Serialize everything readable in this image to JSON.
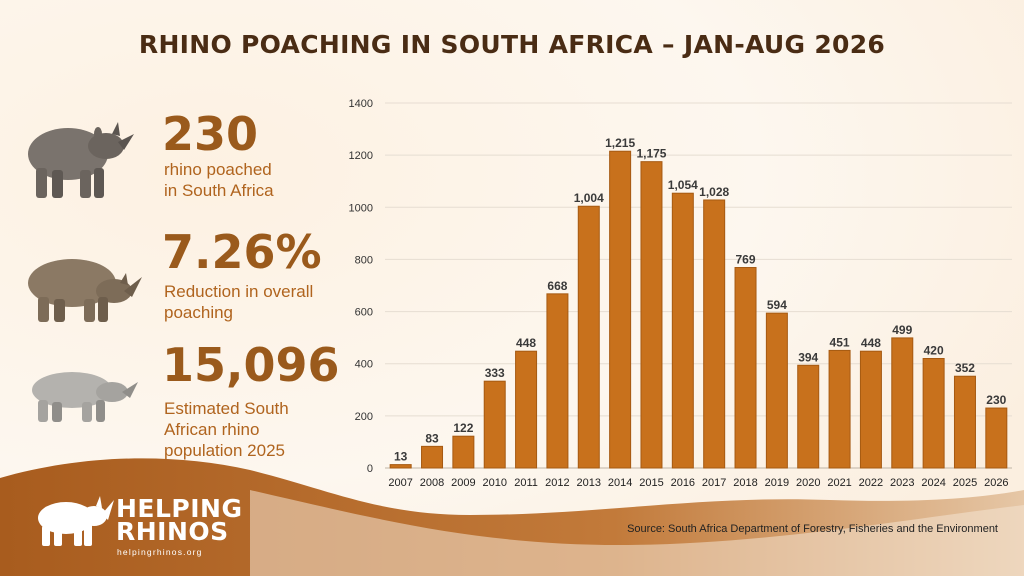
{
  "title": "RHINO POACHING IN SOUTH AFRICA – JAN-AUG 2026",
  "stats": [
    {
      "value": "230",
      "line1": "rhino poached",
      "line2": "in South Africa",
      "line3": ""
    },
    {
      "value": "7.26%",
      "line1": "Reduction in overall",
      "line2": "poaching",
      "line3": ""
    },
    {
      "value": "15,096",
      "line1": "Estimated South",
      "line2": "African rhino",
      "line3": "population 2025"
    }
  ],
  "brand": {
    "line1": "HELPING",
    "line2": "RHINOS",
    "url": "helpingrhinos.org"
  },
  "source": "Source: South Africa Department of Forestry, Fisheries and the Environment",
  "colors": {
    "bar": "#c8711c",
    "bar_edge": "#a65a12",
    "title": "#4a2c14",
    "stat": "#9a5a1c",
    "wave": "#a65d20"
  },
  "icons": [
    "black-rhino-icon",
    "white-rhino-icon",
    "rhino-icon",
    "rhino-logo-icon"
  ],
  "chart_data": {
    "type": "bar",
    "categories": [
      "2007",
      "2008",
      "2009",
      "2010",
      "2011",
      "2012",
      "2013",
      "2014",
      "2015",
      "2016",
      "2017",
      "2018",
      "2019",
      "2020",
      "2021",
      "2022",
      "2023",
      "2024",
      "2025",
      "2026"
    ],
    "values": [
      13,
      83,
      122,
      333,
      448,
      668,
      1004,
      1215,
      1175,
      1054,
      1028,
      769,
      594,
      394,
      451,
      448,
      499,
      420,
      352,
      230
    ],
    "labels": [
      "13",
      "83",
      "122",
      "333",
      "448",
      "668",
      "1,004",
      "1,215",
      "1,175",
      "1,054",
      "1,028",
      "769",
      "594",
      "394",
      "451",
      "448",
      "499",
      "420",
      "352",
      "230"
    ],
    "ylim": [
      0,
      1400
    ],
    "yticks": [
      0,
      200,
      400,
      600,
      800,
      1000,
      1200,
      1400
    ],
    "grid": true,
    "title": "",
    "xlabel": "",
    "ylabel": ""
  }
}
